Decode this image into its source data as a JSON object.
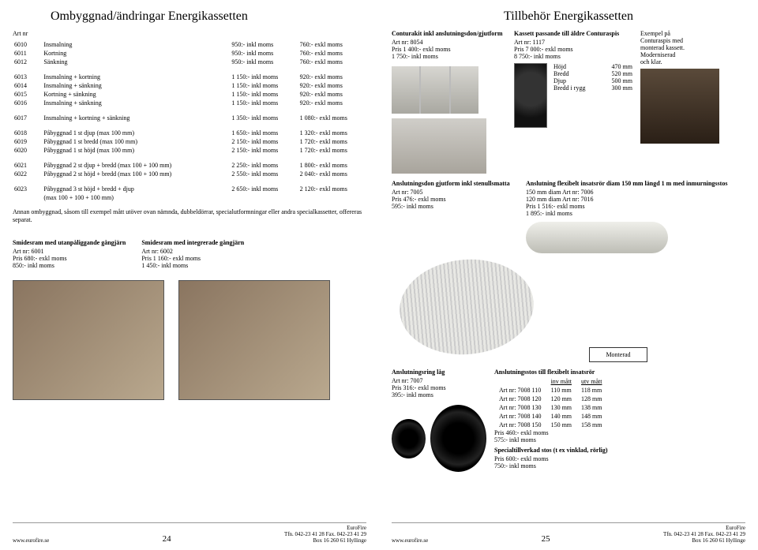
{
  "left": {
    "title": "Ombyggnad/ändringar Energikassetten",
    "art_header": "Art nr",
    "sections": [
      [
        {
          "art": "6010",
          "desc": "Insmalning",
          "p1": "950:- inkl moms",
          "p2": "760:- exkl moms"
        },
        {
          "art": "6011",
          "desc": "Kortning",
          "p1": "950:- inkl moms",
          "p2": "760:- exkl moms"
        },
        {
          "art": "6012",
          "desc": "Sänkning",
          "p1": "950:- inkl moms",
          "p2": "760:- exkl moms"
        }
      ],
      [
        {
          "art": "6013",
          "desc": "Insmalning + kortning",
          "p1": "1 150:- inkl moms",
          "p2": "920:- exkl moms"
        },
        {
          "art": "6014",
          "desc": "Insmalning + sänkning",
          "p1": "1 150:- inkl moms",
          "p2": "920:- exkl moms"
        },
        {
          "art": "6015",
          "desc": "Kortning + sänkning",
          "p1": "1 150:- inkl moms",
          "p2": "920:- exkl moms"
        },
        {
          "art": "6016",
          "desc": "Insmalning + sänkning",
          "p1": "1 150:- inkl moms",
          "p2": "920:- exkl moms"
        }
      ],
      [
        {
          "art": "6017",
          "desc": "Insmalning + kortning + sänkning",
          "p1": "1 350:- inkl moms",
          "p2": "1 080:- exkl moms"
        }
      ],
      [
        {
          "art": "6018",
          "desc": "Påbyggnad 1 st djup   (max 100 mm)",
          "p1": "1 650:- inkl moms",
          "p2": "1 320:- exkl moms"
        },
        {
          "art": "6019",
          "desc": "Påbyggnad 1 st bredd (max 100 mm)",
          "p1": "2 150:- inkl moms",
          "p2": "1 720:- exkl moms"
        },
        {
          "art": "6020",
          "desc": "Påbyggnad 1 st höjd  (max 100 mm)",
          "p1": "2 150:- inkl moms",
          "p2": "1 720:- exkl moms"
        }
      ],
      [
        {
          "art": "6021",
          "desc": "Påbyggnad 2 st djup + bredd (max 100 + 100 mm)",
          "p1": "2 250:- inkl moms",
          "p2": "1 800:- exkl moms"
        },
        {
          "art": "6022",
          "desc": "Påbyggnad 2 st höjd + bredd (max 100 + 100 mm)",
          "p1": "2 550:- inkl moms",
          "p2": "2 040:- exkl moms"
        }
      ],
      [
        {
          "art": "6023",
          "desc": "Påbyggnad 3 st höjd + bredd + djup\n(max 100 + 100 + 100 mm)",
          "p1": "2 650:- inkl moms",
          "p2": "2 120:- exkl moms"
        }
      ]
    ],
    "note": "Annan ombyggnad, såsom till exempel mått utöver ovan nämnda, dubbeldörrar, specialutformningar eller andra specialkassetter, offereras separat.",
    "boxes": {
      "b1": {
        "title": "Smidesram med utanpåliggande gångjärn",
        "lines": [
          "Art nr: 6001",
          "Pris   680:- exkl moms",
          "         850:- inkl moms"
        ]
      },
      "b2": {
        "title": "Smidesram med integrerade gångjärn",
        "lines": [
          "Art nr: 6002",
          "Pris   1 160:- exkl moms",
          "         1 450:- inkl moms"
        ]
      }
    },
    "footer": {
      "site": "www.eurofire.se",
      "page": "24",
      "co": "EuroFire",
      "addr1": "Tfn. 042-23 41 28  Fax. 042-23 41 29",
      "addr2": "Box 16   260 61 Hyllinge"
    }
  },
  "right": {
    "title": "Tillbehör Energikassetten",
    "contura": {
      "title": "Conturakit inkl anslutningsdon/gjutform",
      "lines": [
        "Art nr: 8054",
        "Pris   1 400:-  exkl moms",
        "         1 750:-  inkl moms"
      ]
    },
    "kassett": {
      "title": "Kassett passande till äldre Conturaspis",
      "lines": [
        "Art nr: 1117",
        "Pris   7 000:- exkl moms",
        "         8 750:- inkl moms"
      ],
      "dims": [
        {
          "k": "Höjd",
          "v": "470 mm"
        },
        {
          "k": "Bredd",
          "v": "520 mm"
        },
        {
          "k": "Djup",
          "v": "500 mm"
        },
        {
          "k": "Bredd i rygg",
          "v": "300 mm"
        }
      ]
    },
    "exempel": {
      "lines": [
        "Exempel på",
        "Conturaspis med",
        "monterad kassett.",
        "Moderniserad",
        "och klar."
      ]
    },
    "gjutform": {
      "title": "Anslutningsdon gjutform inkl stenullsmatta",
      "lines": [
        "Art nr: 7005",
        "Pris   476:-  exkl moms",
        "         595:-  inkl moms"
      ]
    },
    "flexrör": {
      "title": "Anslutning flexibelt insatsrör diam 150 mm längd 1 m med inmurningsstos",
      "lines": [
        "150 mm diam  Art nr: 7006",
        "120 mm diam  Art nr: 7016",
        "Pris   1 516:-  exkl moms",
        "         1 895:-  inkl moms"
      ]
    },
    "ring": {
      "title": "Anslutningsring låg",
      "lines": [
        "Art nr: 7007",
        "Pris   316:-  exkl moms",
        "         395:-  inkl moms"
      ]
    },
    "monterad": "Monterad",
    "stos": {
      "title": "Anslutningsstos till flexibelt insatsrör",
      "head": [
        "",
        "inv mått",
        "utv mått"
      ],
      "rows": [
        [
          "Art nr: 7008 110",
          "110 mm",
          "118 mm"
        ],
        [
          "Art nr: 7008 120",
          "120 mm",
          "128 mm"
        ],
        [
          "Art nr: 7008 130",
          "130 mm",
          "138 mm"
        ],
        [
          "Art nr: 7008 140",
          "140 mm",
          "148 mm"
        ],
        [
          "Art nr: 7008 150",
          "150 mm",
          "158 mm"
        ]
      ],
      "price": [
        "Pris   460:-  exkl moms",
        "         575:-  inkl moms"
      ],
      "special_t": "Specialtillverkad stos (t ex vinklad, rörlig)",
      "special_p": [
        "Pris   600:-  exkl moms",
        "         750:-  inkl moms"
      ]
    },
    "footer": {
      "site": "www.eurofire.se",
      "page": "25",
      "co": "EuroFire",
      "addr1": "Tfn. 042-23 41 28  Fax. 042-23 41 29",
      "addr2": "Box 16   260 61 Hyllinge"
    }
  }
}
